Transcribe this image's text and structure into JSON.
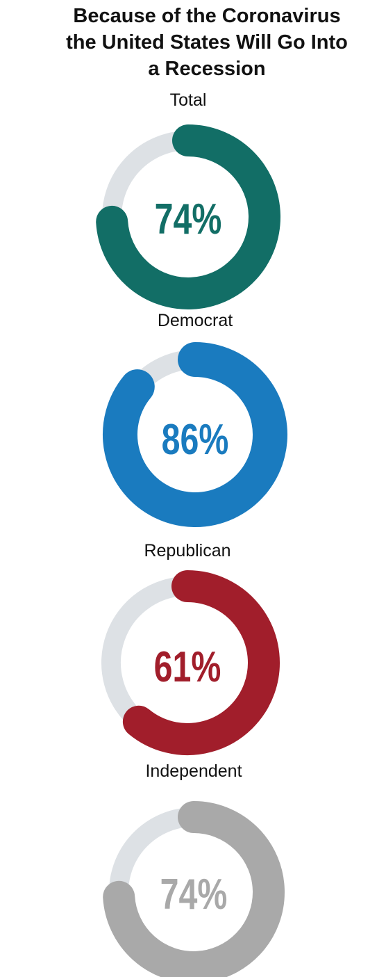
{
  "title": {
    "lines": [
      "Because of the Coronavirus",
      "the United States Will Go Into",
      "a Recession"
    ]
  },
  "colors": {
    "track": "#dde1e5",
    "text": "#111111"
  },
  "chart_data": {
    "type": "donut",
    "title": "Because of the Coronavirus the United States Will Go Into a Recession",
    "unit": "%",
    "categories": [
      "Total",
      "Democrat",
      "Republican",
      "Independent"
    ],
    "values": [
      74,
      86,
      61,
      74
    ],
    "value_labels": [
      "74%",
      "86%",
      "61%",
      "74%"
    ],
    "colors": [
      "#126e66",
      "#1a7bbf",
      "#a11e2b",
      "#a9a9a9"
    ],
    "max": 100
  }
}
